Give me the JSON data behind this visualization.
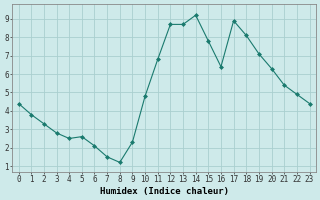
{
  "x": [
    0,
    1,
    2,
    3,
    4,
    5,
    6,
    7,
    8,
    9,
    10,
    11,
    12,
    13,
    14,
    15,
    16,
    17,
    18,
    19,
    20,
    21,
    22,
    23
  ],
  "y": [
    4.4,
    3.8,
    3.3,
    2.8,
    2.5,
    2.6,
    2.1,
    1.5,
    1.2,
    2.3,
    4.8,
    6.8,
    8.7,
    8.7,
    9.2,
    7.8,
    6.4,
    8.9,
    8.1,
    7.1,
    6.3,
    5.4,
    4.9,
    4.4
  ],
  "line_color": "#1a7a6e",
  "marker": "D",
  "marker_size": 2,
  "bg_color": "#ceeaea",
  "grid_color": "#aacfcf",
  "xlabel": "Humidex (Indice chaleur)",
  "xlim": [
    -0.5,
    23.5
  ],
  "ylim": [
    0.7,
    9.8
  ],
  "xticks": [
    0,
    1,
    2,
    3,
    4,
    5,
    6,
    7,
    8,
    9,
    10,
    11,
    12,
    13,
    14,
    15,
    16,
    17,
    18,
    19,
    20,
    21,
    22,
    23
  ],
  "yticks": [
    1,
    2,
    3,
    4,
    5,
    6,
    7,
    8,
    9
  ],
  "xtick_labels": [
    "0",
    "1",
    "2",
    "3",
    "4",
    "5",
    "6",
    "7",
    "8",
    "9",
    "10",
    "11",
    "12",
    "13",
    "14",
    "15",
    "16",
    "17",
    "18",
    "19",
    "20",
    "21",
    "22",
    "23"
  ],
  "ytick_labels": [
    "1",
    "2",
    "3",
    "4",
    "5",
    "6",
    "7",
    "8",
    "9"
  ],
  "xlabel_fontsize": 6.5,
  "tick_fontsize": 5.5
}
